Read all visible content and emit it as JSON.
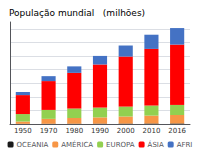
{
  "chart_data": {
    "type": "bar",
    "title": "População mundial   (milhões)",
    "categories": [
      "1950",
      "1970",
      "1980",
      "1990",
      "2000",
      "2010",
      "2016"
    ],
    "series": [
      {
        "name": "OCEANIA",
        "color": "#1a1a1a",
        "values": [
          13,
          19,
          23,
          27,
          31,
          37,
          40
        ]
      },
      {
        "name": "AMÉRICA",
        "color": "#f79646",
        "values": [
          170,
          360,
          420,
          460,
          520,
          580,
          620
        ]
      },
      {
        "name": "EUROPA",
        "color": "#92d050",
        "values": [
          547,
          656,
          694,
          721,
          729,
          740,
          742
        ]
      },
      {
        "name": "ÁSIA",
        "color": "#ff0000",
        "values": [
          1395,
          2120,
          2623,
          3168,
          3680,
          4164,
          4436
        ]
      },
      {
        "name": "AFRI",
        "color": "#4472c4",
        "values": [
          229,
          363,
          477,
          630,
          811,
          1044,
          1216
        ]
      }
    ],
    "stacked": true,
    "ylim": [
      0,
      7500
    ],
    "yticks": [
      1000,
      2000,
      3000,
      4000,
      5000,
      6000,
      7000
    ],
    "grid": true,
    "legend": "bottom",
    "tick_labels": "x"
  }
}
